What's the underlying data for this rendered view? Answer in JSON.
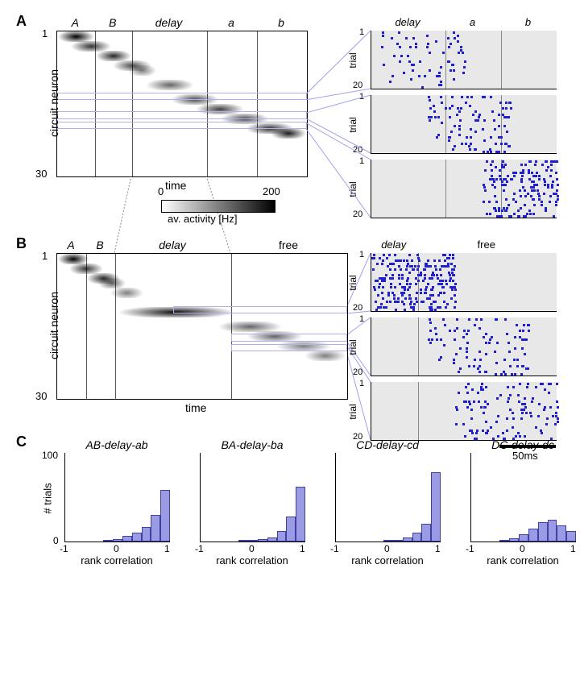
{
  "colors": {
    "highlight_border": "#b0b0f0",
    "bar_fill": "#9b9be5",
    "bar_stroke": "#4040a0",
    "raster_bg": "#e8e8e8",
    "raster_spike": "#2020d0",
    "divider": "#666666"
  },
  "panelA": {
    "label": "A",
    "y_label": "circuit neuron",
    "x_label": "time",
    "y_ticks": [
      "1",
      "30"
    ],
    "phases": [
      "A",
      "B",
      "delay",
      "a",
      "b"
    ],
    "phase_positions_pct": [
      0,
      15,
      30,
      60,
      80,
      100
    ],
    "heatmap_bands": [
      {
        "start": 0,
        "end": 15,
        "row": 0,
        "intensity": 1.0
      },
      {
        "start": 5,
        "end": 22,
        "row": 2,
        "intensity": 0.8
      },
      {
        "start": 15,
        "end": 30,
        "row": 4,
        "intensity": 0.85
      },
      {
        "start": 22,
        "end": 38,
        "row": 6,
        "intensity": 0.7
      },
      {
        "start": 28,
        "end": 40,
        "row": 7,
        "intensity": 0.5
      },
      {
        "start": 35,
        "end": 55,
        "row": 10,
        "intensity": 0.6
      },
      {
        "start": 45,
        "end": 65,
        "row": 13,
        "intensity": 0.7
      },
      {
        "start": 55,
        "end": 75,
        "row": 15,
        "intensity": 0.75
      },
      {
        "start": 65,
        "end": 85,
        "row": 17,
        "intensity": 0.7
      },
      {
        "start": 75,
        "end": 95,
        "row": 19,
        "intensity": 0.8
      },
      {
        "start": 85,
        "end": 100,
        "row": 20,
        "intensity": 0.9
      }
    ],
    "highlight_rows_pct": [
      42,
      55,
      62
    ],
    "colorbar": {
      "min": "0",
      "max": "200",
      "label": "av. activity [Hz]"
    },
    "rasters": {
      "phases": [
        "delay",
        "a",
        "b"
      ],
      "phase_positions_pct": [
        0,
        40,
        70,
        100
      ],
      "y_label": "trial",
      "y_ticks": [
        "1",
        "20"
      ],
      "plots": [
        {
          "density": 0.04,
          "bias_start": 0.05,
          "bias_end": 0.5
        },
        {
          "density": 0.06,
          "bias_start": 0.3,
          "bias_end": 0.75
        },
        {
          "density": 0.1,
          "bias_start": 0.6,
          "bias_end": 1.0
        }
      ]
    }
  },
  "panelB": {
    "label": "B",
    "y_label": "circuit neuron",
    "x_label": "time",
    "y_ticks": [
      "1",
      "30"
    ],
    "phases": [
      "A",
      "B",
      "delay",
      "free"
    ],
    "phase_positions_pct": [
      0,
      10,
      20,
      60,
      100
    ],
    "heatmap_bands": [
      {
        "start": 0,
        "end": 11,
        "row": 0,
        "intensity": 1.0
      },
      {
        "start": 4,
        "end": 16,
        "row": 2,
        "intensity": 0.8
      },
      {
        "start": 10,
        "end": 22,
        "row": 4,
        "intensity": 0.85
      },
      {
        "start": 14,
        "end": 24,
        "row": 5,
        "intensity": 0.6
      },
      {
        "start": 18,
        "end": 30,
        "row": 7,
        "intensity": 0.5
      },
      {
        "start": 20,
        "end": 62,
        "row": 11,
        "intensity": 0.95
      },
      {
        "start": 55,
        "end": 78,
        "row": 14,
        "intensity": 0.6
      },
      {
        "start": 65,
        "end": 85,
        "row": 16,
        "intensity": 0.6
      },
      {
        "start": 75,
        "end": 95,
        "row": 18,
        "intensity": 0.5
      },
      {
        "start": 85,
        "end": 100,
        "row": 20,
        "intensity": 0.5
      }
    ],
    "highlight_rows_pct": [
      36,
      55,
      62
    ],
    "highlight_starts_pct": [
      40,
      60,
      60
    ],
    "rasters": {
      "phases": [
        "delay",
        "free"
      ],
      "phase_positions_pct": [
        0,
        25,
        100
      ],
      "y_label": "trial",
      "y_ticks": [
        "1",
        "20"
      ],
      "plots": [
        {
          "density": 0.15,
          "bias_start": 0.0,
          "bias_end": 0.45
        },
        {
          "density": 0.06,
          "bias_start": 0.3,
          "bias_end": 0.85
        },
        {
          "density": 0.07,
          "bias_start": 0.45,
          "bias_end": 1.0
        }
      ]
    },
    "scale_bar": "50ms"
  },
  "panelC": {
    "label": "C",
    "y_label": "# trials",
    "x_label": "rank correlation",
    "y_ticks": [
      "0",
      "100"
    ],
    "x_ticks": [
      "-1",
      "0",
      "1"
    ],
    "subplots": [
      {
        "title": "AB-delay-ab",
        "bars": [
          0,
          0,
          0,
          0,
          2,
          3,
          6,
          10,
          16,
          30,
          58
        ]
      },
      {
        "title": "BA-delay-ba",
        "bars": [
          0,
          0,
          0,
          0,
          1,
          2,
          3,
          5,
          12,
          28,
          62
        ]
      },
      {
        "title": "CD-delay-cd",
        "bars": [
          0,
          0,
          0,
          0,
          0,
          1,
          2,
          5,
          10,
          20,
          78
        ]
      },
      {
        "title": "DC-delay-dc",
        "bars": [
          0,
          0,
          0,
          2,
          4,
          8,
          15,
          22,
          25,
          18,
          12
        ]
      }
    ]
  }
}
